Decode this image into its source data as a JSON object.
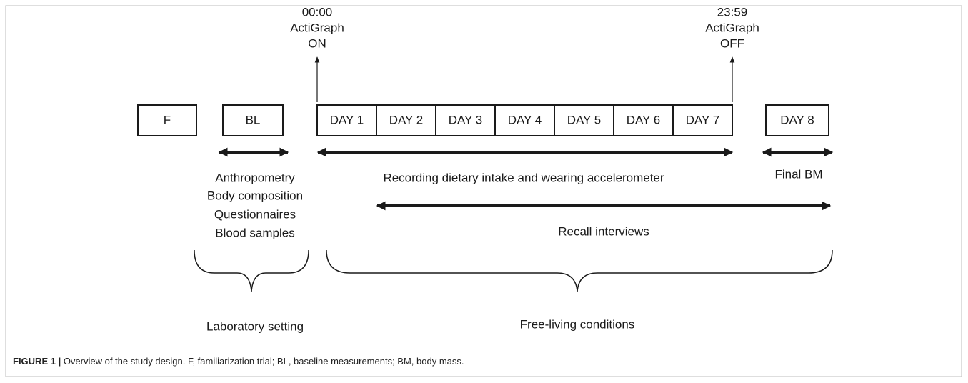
{
  "boxes": [
    "F",
    "BL",
    "DAY 1",
    "DAY 2",
    "DAY 3",
    "DAY 4",
    "DAY 5",
    "DAY 6",
    "DAY 7",
    "DAY 8"
  ],
  "markers": [
    {
      "time": "00:00",
      "device": "ActiGraph",
      "state": "ON"
    },
    {
      "time": "23:59",
      "device": "ActiGraph",
      "state": "OFF"
    }
  ],
  "laboratory_measures": [
    "Anthropometry",
    "Body composition",
    "Questionnaires",
    "Blood samples"
  ],
  "recording": "Recording dietary intake and wearing accelerometer",
  "final": "Final BM",
  "recall": "Recall interviews",
  "settings": [
    "Laboratory setting",
    "Free-living conditions"
  ],
  "caption": {
    "label": "FIGURE 1 |",
    "text": " Overview of the study design. F, familiarization trial; BL, baseline measurements; BM, body mass."
  }
}
